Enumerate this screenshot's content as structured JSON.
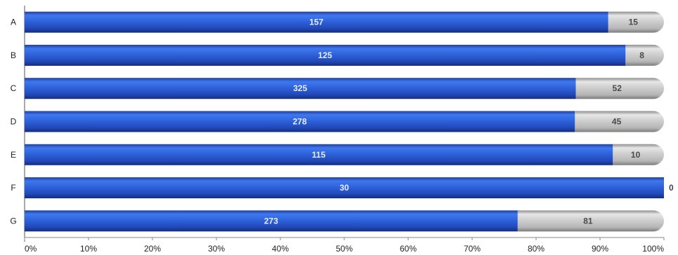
{
  "chart_data": {
    "type": "bar",
    "orientation": "horizontal",
    "stacked": "percent",
    "categories": [
      "A",
      "B",
      "C",
      "D",
      "E",
      "F",
      "G"
    ],
    "series": [
      {
        "values": [
          157,
          125,
          325,
          278,
          115,
          30,
          273
        ],
        "color": "#2a5fd8"
      },
      {
        "values": [
          15,
          8,
          52,
          45,
          10,
          0,
          81
        ],
        "color": "#c8c8c8"
      }
    ],
    "xlim": [
      0,
      100
    ],
    "x_ticks": [
      "0%",
      "10%",
      "20%",
      "30%",
      "40%",
      "50%",
      "60%",
      "70%",
      "80%",
      "90%",
      "100%"
    ],
    "grid": false,
    "legend": "none",
    "title": "",
    "xlabel": "",
    "ylabel": ""
  }
}
